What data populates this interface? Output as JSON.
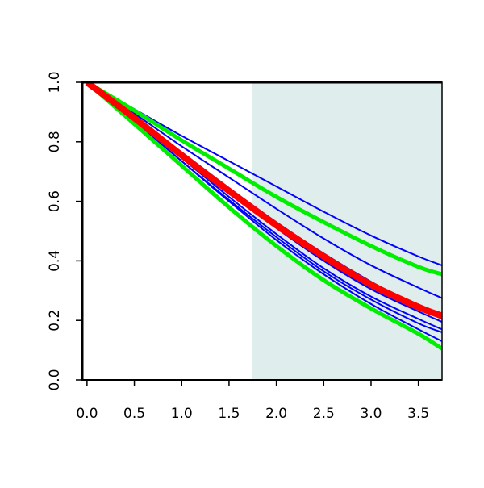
{
  "chart_data": {
    "type": "line",
    "title": "",
    "xlabel": "",
    "ylabel": "",
    "xlim": [
      -0.05,
      3.75
    ],
    "ylim": [
      0.0,
      1.0
    ],
    "x_ticks": [
      "0.0",
      "0.5",
      "1.0",
      "1.5",
      "2.0",
      "2.5",
      "3.0",
      "3.5"
    ],
    "y_ticks": [
      "0.0",
      "0.2",
      "0.4",
      "0.6",
      "0.8",
      "1.0"
    ],
    "shaded_region": {
      "x_from": 1.74,
      "x_to": 3.75,
      "color": "#e0eded"
    },
    "grid": false,
    "x": [
      0.0,
      0.5,
      1.0,
      1.5,
      2.0,
      2.5,
      3.0,
      3.5,
      3.75
    ],
    "series": [
      {
        "color": "#0000ff",
        "width": "thin",
        "values": [
          1.0,
          0.91,
          0.82,
          0.735,
          0.65,
          0.565,
          0.485,
          0.415,
          0.385
        ]
      },
      {
        "color": "#0000ff",
        "width": "thin",
        "values": [
          1.0,
          0.895,
          0.785,
          0.68,
          0.575,
          0.475,
          0.385,
          0.31,
          0.275
        ]
      },
      {
        "color": "#0000ff",
        "width": "thin",
        "values": [
          1.0,
          0.885,
          0.765,
          0.645,
          0.53,
          0.425,
          0.33,
          0.245,
          0.205
        ]
      },
      {
        "color": "#0000ff",
        "width": "thin",
        "values": [
          1.0,
          0.88,
          0.755,
          0.63,
          0.51,
          0.4,
          0.305,
          0.23,
          0.195
        ]
      },
      {
        "color": "#0000ff",
        "width": "thin",
        "values": [
          1.0,
          0.875,
          0.745,
          0.615,
          0.49,
          0.375,
          0.28,
          0.205,
          0.17
        ]
      },
      {
        "color": "#0000ff",
        "width": "thin",
        "values": [
          1.0,
          0.87,
          0.735,
          0.6,
          0.47,
          0.355,
          0.255,
          0.17,
          0.13
        ]
      },
      {
        "color": "#0000ff",
        "width": "thin",
        "values": [
          1.0,
          0.87,
          0.735,
          0.605,
          0.48,
          0.365,
          0.27,
          0.19,
          0.16
        ]
      },
      {
        "color": "#00ee00",
        "width": "thick",
        "values": [
          1.0,
          0.905,
          0.805,
          0.71,
          0.615,
          0.53,
          0.45,
          0.38,
          0.355
        ]
      },
      {
        "color": "#00ee00",
        "width": "thick",
        "values": [
          1.0,
          0.86,
          0.72,
          0.58,
          0.45,
          0.335,
          0.24,
          0.155,
          0.105
        ]
      },
      {
        "color": "#ff0000",
        "width": "thick",
        "values": [
          1.0,
          0.88,
          0.755,
          0.635,
          0.52,
          0.415,
          0.32,
          0.245,
          0.215
        ]
      }
    ]
  }
}
